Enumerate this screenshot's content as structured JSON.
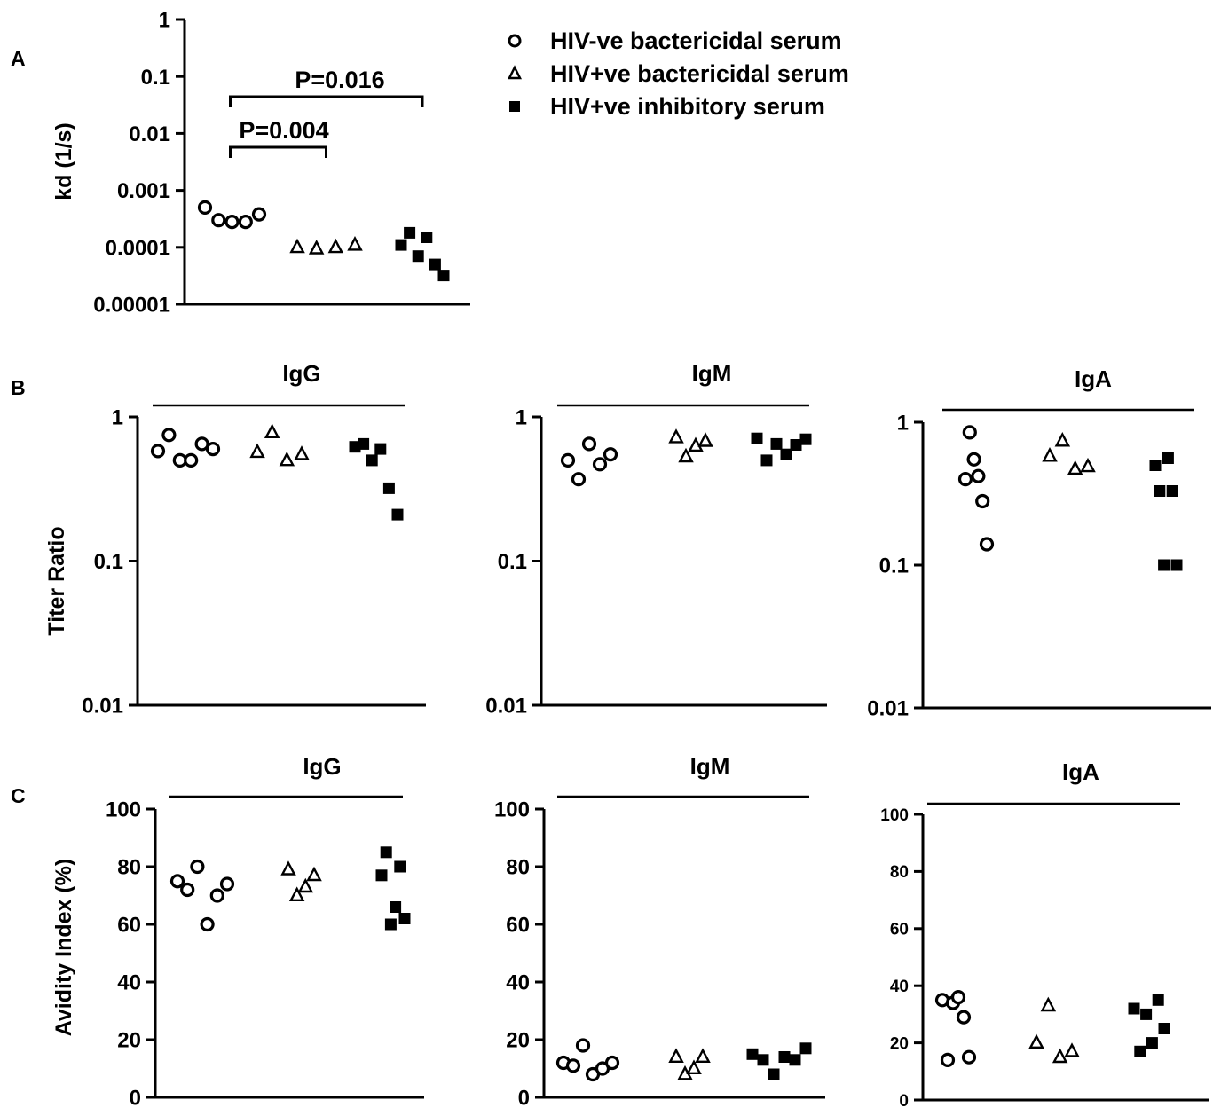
{
  "panel_labels": {
    "a": "A",
    "b": "B",
    "c": "C"
  },
  "legend": [
    {
      "marker": "circle-open",
      "label": "HIV-ve bactericidal serum"
    },
    {
      "marker": "triangle-open",
      "label": "HIV+ve bactericidal serum"
    },
    {
      "marker": "square-filled",
      "label": "HIV+ve inhibitory serum"
    }
  ],
  "chart_data": [
    {
      "id": "A",
      "type": "scatter",
      "title": "",
      "ylabel": "kd (1/s)",
      "yscale": "log",
      "ylim": [
        1e-05,
        1
      ],
      "yticks": [
        1,
        0.1,
        0.01,
        0.001,
        0.0001,
        1e-05
      ],
      "yticklabels": [
        "1",
        "0.1",
        "0.01",
        "0.001",
        "0.0001",
        "0.00001"
      ],
      "groups": [
        "HIV-ve bactericidal serum",
        "HIV+ve bactericidal serum",
        "HIV+ve inhibitory serum"
      ],
      "values": [
        [
          0.0005,
          0.0003,
          0.00028,
          0.00028,
          0.00038
        ],
        [
          0.0001,
          9.5e-05,
          0.0001,
          0.00011
        ],
        [
          0.00011,
          0.00018,
          7e-05,
          0.00015,
          5e-05,
          3.2e-05
        ]
      ],
      "annotations": [
        {
          "text": "P=0.004",
          "from": 0,
          "to": 1
        },
        {
          "text": "P=0.016",
          "from": 0,
          "to": 2
        }
      ]
    },
    {
      "id": "B-IgG",
      "type": "scatter",
      "title": "IgG",
      "ylabel": "Titer Ratio",
      "yscale": "log",
      "ylim": [
        0.01,
        1
      ],
      "yticks": [
        1,
        0.1,
        0.01
      ],
      "yticklabels": [
        "1",
        "0.1",
        "0.01"
      ],
      "values": [
        [
          0.58,
          0.75,
          0.5,
          0.5,
          0.65,
          0.6
        ],
        [
          0.57,
          0.78,
          0.5,
          0.55
        ],
        [
          0.62,
          0.65,
          0.5,
          0.6,
          0.32,
          0.21
        ]
      ]
    },
    {
      "id": "B-IgM",
      "type": "scatter",
      "title": "IgM",
      "ylabel": "",
      "yscale": "log",
      "ylim": [
        0.01,
        1
      ],
      "yticks": [
        1,
        0.1,
        0.01
      ],
      "yticklabels": [
        "1",
        "0.1",
        "0.01"
      ],
      "values": [
        [
          0.5,
          0.37,
          0.65,
          0.47,
          0.55
        ],
        [
          0.72,
          0.53,
          0.63,
          0.68
        ],
        [
          0.71,
          0.5,
          0.65,
          0.55,
          0.64,
          0.7
        ]
      ]
    },
    {
      "id": "B-IgA",
      "type": "scatter",
      "title": "IgA",
      "ylabel": "",
      "yscale": "log",
      "ylim": [
        0.01,
        1
      ],
      "yticks": [
        1,
        0.1,
        0.01
      ],
      "yticklabels": [
        "1",
        "0.1",
        "0.01"
      ],
      "values": [
        [
          0.4,
          0.85,
          0.55,
          0.42,
          0.28,
          0.14
        ],
        [
          0.58,
          0.74,
          0.47,
          0.49
        ],
        [
          0.5,
          0.33,
          0.1,
          0.56,
          0.33,
          0.1
        ]
      ]
    },
    {
      "id": "C-IgG",
      "type": "scatter",
      "title": "IgG",
      "ylabel": "Avidity Index (%)",
      "yscale": "linear",
      "ylim": [
        0,
        100
      ],
      "yticks": [
        0,
        20,
        40,
        60,
        80,
        100
      ],
      "yticklabels": [
        "0",
        "20",
        "40",
        "60",
        "80",
        "100"
      ],
      "values": [
        [
          75,
          72,
          80,
          60,
          70,
          74
        ],
        [
          79,
          70,
          73,
          77
        ],
        [
          77,
          85,
          60,
          66,
          80,
          62
        ]
      ]
    },
    {
      "id": "C-IgM",
      "type": "scatter",
      "title": "IgM",
      "ylabel": "",
      "yscale": "linear",
      "ylim": [
        0,
        100
      ],
      "yticks": [
        0,
        20,
        40,
        60,
        80,
        100
      ],
      "yticklabels": [
        "0",
        "20",
        "40",
        "60",
        "80",
        "100"
      ],
      "values": [
        [
          12,
          11,
          18,
          8,
          10,
          12
        ],
        [
          14,
          8,
          10,
          14
        ],
        [
          15,
          13,
          8,
          14,
          13,
          17
        ]
      ]
    },
    {
      "id": "C-IgA",
      "type": "scatter",
      "title": "IgA",
      "ylabel": "",
      "yscale": "linear",
      "ylim": [
        0,
        100
      ],
      "yticks": [
        0,
        20,
        40,
        60,
        80,
        100
      ],
      "yticklabels": [
        "0",
        "20",
        "40",
        "60",
        "80",
        "100"
      ],
      "values": [
        [
          35,
          14,
          34,
          36,
          29,
          15
        ],
        [
          20,
          33,
          15,
          17
        ],
        [
          32,
          17,
          30,
          20,
          35,
          25
        ]
      ]
    }
  ]
}
